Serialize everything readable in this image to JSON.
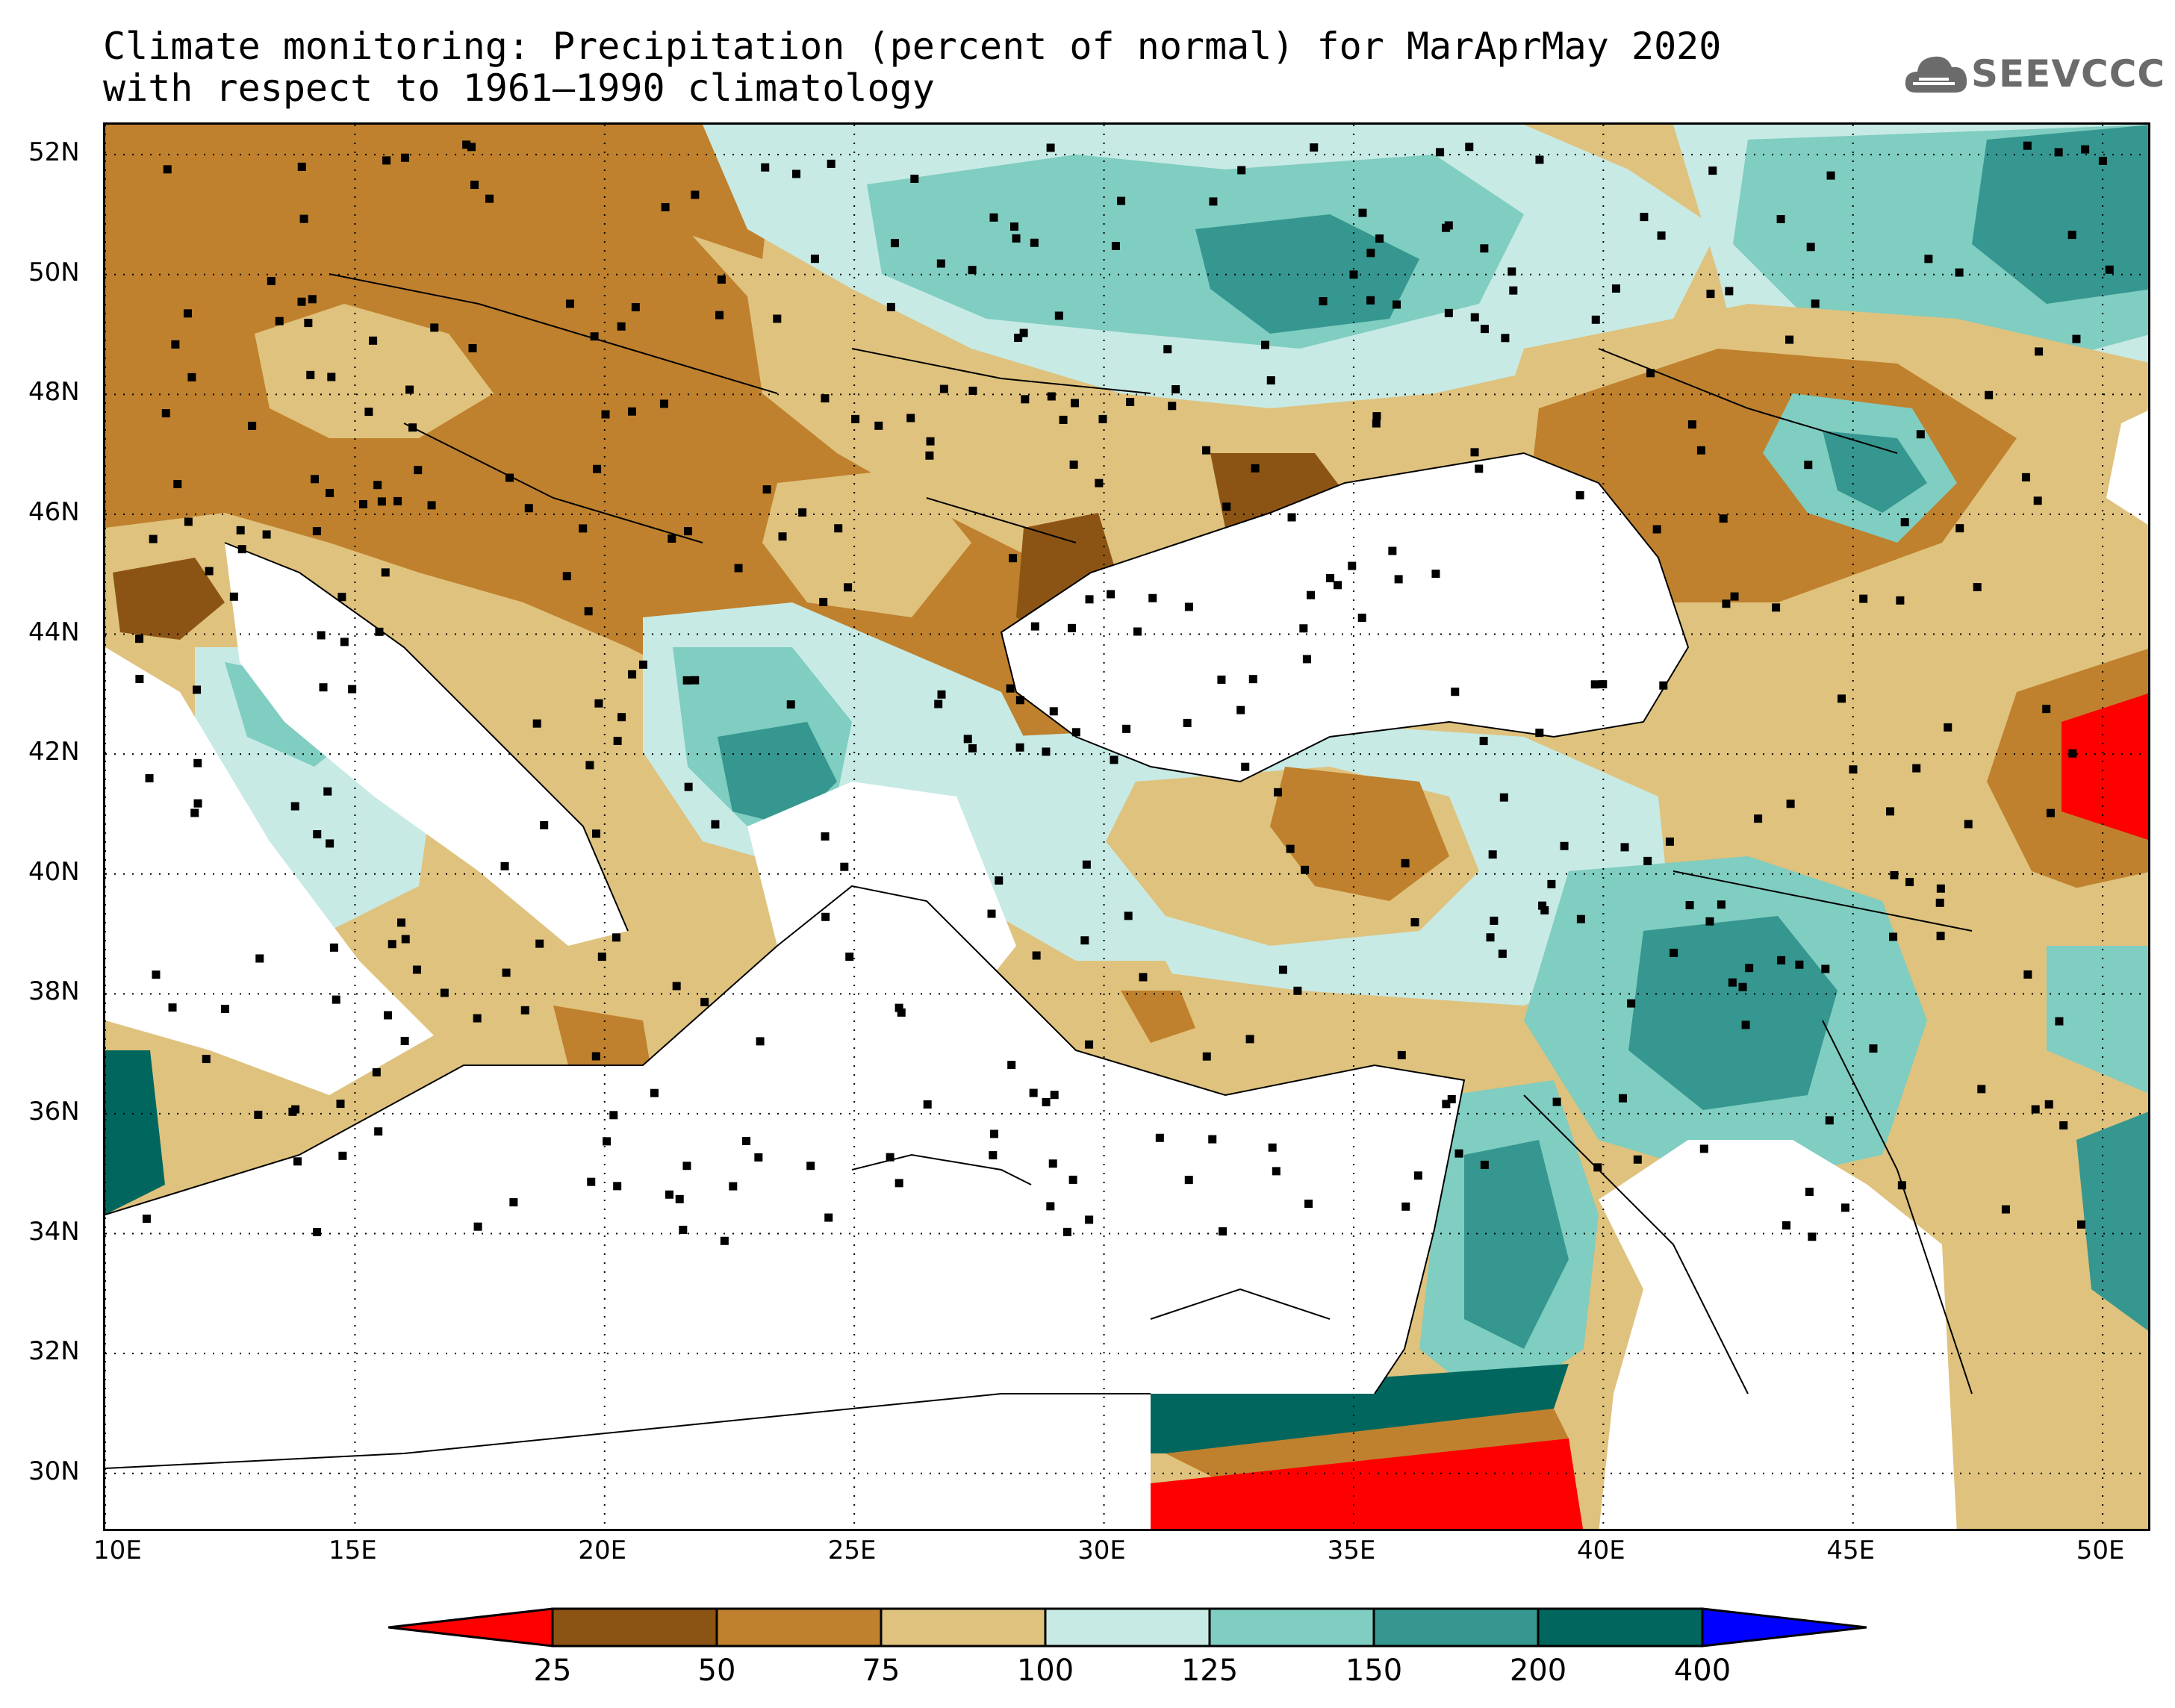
{
  "title": {
    "line1": "Climate monitoring: Precipitation (percent of normal) for MarAprMay 2020",
    "line2": "with respect to 1961–1990 climatology"
  },
  "logo": {
    "text": "SEEVCCC",
    "icon": "cloud-icon",
    "color": "#6b6b6b"
  },
  "map": {
    "lon_range": [
      10,
      51
    ],
    "lat_range": [
      29,
      52.5
    ],
    "lon_ticks": [
      {
        "value": 10,
        "label": "10E"
      },
      {
        "value": 15,
        "label": "15E"
      },
      {
        "value": 20,
        "label": "20E"
      },
      {
        "value": 25,
        "label": "25E"
      },
      {
        "value": 30,
        "label": "30E"
      },
      {
        "value": 35,
        "label": "35E"
      },
      {
        "value": 40,
        "label": "40E"
      },
      {
        "value": 45,
        "label": "45E"
      },
      {
        "value": 50,
        "label": "50E"
      }
    ],
    "lat_ticks": [
      {
        "value": 30,
        "label": "30N"
      },
      {
        "value": 32,
        "label": "32N"
      },
      {
        "value": 34,
        "label": "34N"
      },
      {
        "value": 36,
        "label": "36N"
      },
      {
        "value": 38,
        "label": "38N"
      },
      {
        "value": 40,
        "label": "40N"
      },
      {
        "value": 42,
        "label": "42N"
      },
      {
        "value": 44,
        "label": "44N"
      },
      {
        "value": 46,
        "label": "46N"
      },
      {
        "value": 48,
        "label": "48N"
      },
      {
        "value": 50,
        "label": "50N"
      },
      {
        "value": 52,
        "label": "52N"
      }
    ],
    "grid": "dotted",
    "colors": {
      "lt25": "#ff0000",
      "25-50": "#8c5414",
      "50-75": "#bf812d",
      "75-100": "#dfc27d",
      "100-125": "#c7eae5",
      "125-150": "#80cdc1",
      "150-200": "#35978f",
      "200-400": "#01665e",
      "gt400": "#0000ff",
      "sea": "#ffffff"
    }
  },
  "colorbar": {
    "boundaries": [
      "25",
      "50",
      "75",
      "100",
      "125",
      "150",
      "200",
      "400"
    ],
    "colors": [
      "#ff0000",
      "#8c5414",
      "#bf812d",
      "#dfc27d",
      "#c7eae5",
      "#80cdc1",
      "#35978f",
      "#01665e",
      "#0000ff"
    ]
  }
}
